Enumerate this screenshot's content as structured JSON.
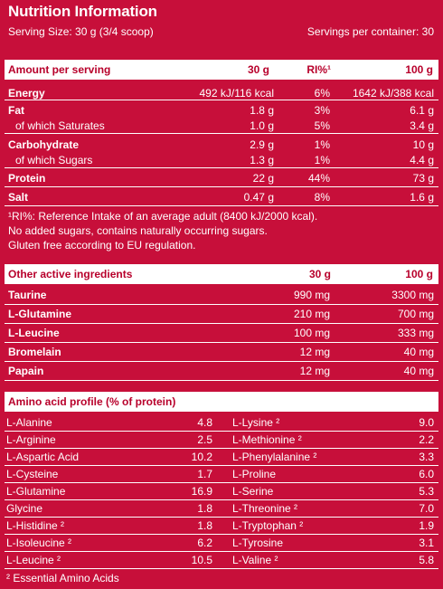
{
  "title": "Nutrition Information",
  "serving_size": "Serving Size: 30 g (3/4 scoop)",
  "servings_per_container": "Servings per container: 30",
  "nutrition": {
    "headers": [
      "Amount per serving",
      "30 g",
      "RI%¹",
      "100 g"
    ],
    "rows": [
      {
        "label": "Energy",
        "v30": "492 kJ/116 kcal",
        "ri": "6%",
        "v100": "1642 kJ/388 kcal",
        "bold": true
      },
      {
        "label": "Fat",
        "v30": "1.8 g",
        "ri": "3%",
        "v100": "6.1 g",
        "bold": true
      },
      {
        "label": "of which Saturates",
        "v30": "1.0 g",
        "ri": "5%",
        "v100": "3.4 g",
        "bold": false
      },
      {
        "label": "Carbohydrate",
        "v30": "2.9 g",
        "ri": "1%",
        "v100": "10 g",
        "bold": true
      },
      {
        "label": "of which Sugars",
        "v30": "1.3 g",
        "ri": "1%",
        "v100": "4.4 g",
        "bold": false
      },
      {
        "label": "Protein",
        "v30": "22 g",
        "ri": "44%",
        "v100": "73 g",
        "bold": true
      },
      {
        "label": "Salt",
        "v30": "0.47 g",
        "ri": "8%",
        "v100": "1.6 g",
        "bold": true
      }
    ]
  },
  "notes": [
    "¹RI%: Reference Intake of an average adult (8400 kJ/2000 kcal).",
    "No added sugars, contains naturally occurring sugars.",
    "Gluten free according to EU regulation."
  ],
  "other": {
    "headers": [
      "Other active ingredients",
      "30 g",
      "100 g"
    ],
    "rows": [
      {
        "label": "Taurine",
        "v30": "990 mg",
        "v100": "3300 mg"
      },
      {
        "label": "L-Glutamine",
        "v30": "210 mg",
        "v100": "700 mg"
      },
      {
        "label": "L-Leucine",
        "v30": "100 mg",
        "v100": "333 mg"
      },
      {
        "label": "Bromelain",
        "v30": "12 mg",
        "v100": "40 mg"
      },
      {
        "label": "Papain",
        "v30": "12 mg",
        "v100": "40 mg"
      }
    ]
  },
  "amino": {
    "header": "Amino acid profile (% of protein)",
    "left": [
      {
        "name": "L-Alanine",
        "value": "4.8"
      },
      {
        "name": "L-Arginine",
        "value": "2.5"
      },
      {
        "name": "L-Aspartic Acid",
        "value": "10.2"
      },
      {
        "name": "L-Cysteine",
        "value": "1.7"
      },
      {
        "name": "L-Glutamine",
        "value": "16.9"
      },
      {
        "name": "Glycine",
        "value": "1.8"
      },
      {
        "name": "L-Histidine ²",
        "value": "1.8"
      },
      {
        "name": "L-Isoleucine ²",
        "value": "6.2"
      },
      {
        "name": "L-Leucine ²",
        "value": "10.5"
      }
    ],
    "right": [
      {
        "name": "L-Lysine ²",
        "value": "9.0"
      },
      {
        "name": "L-Methionine ²",
        "value": "2.2"
      },
      {
        "name": "L-Phenylalanine ²",
        "value": "3.3"
      },
      {
        "name": "L-Proline",
        "value": "6.0"
      },
      {
        "name": "L-Serine",
        "value": "5.3"
      },
      {
        "name": "L-Threonine ²",
        "value": "7.0"
      },
      {
        "name": "L-Tryptophan ²",
        "value": "1.9"
      },
      {
        "name": "L-Tyrosine",
        "value": "3.1"
      },
      {
        "name": "L-Valine ²",
        "value": "5.8"
      }
    ],
    "footnote": "² Essential Amino Acids"
  },
  "colors": {
    "background": "#c70f3a",
    "header_text": "#b8002b",
    "text": "#ffffff"
  }
}
